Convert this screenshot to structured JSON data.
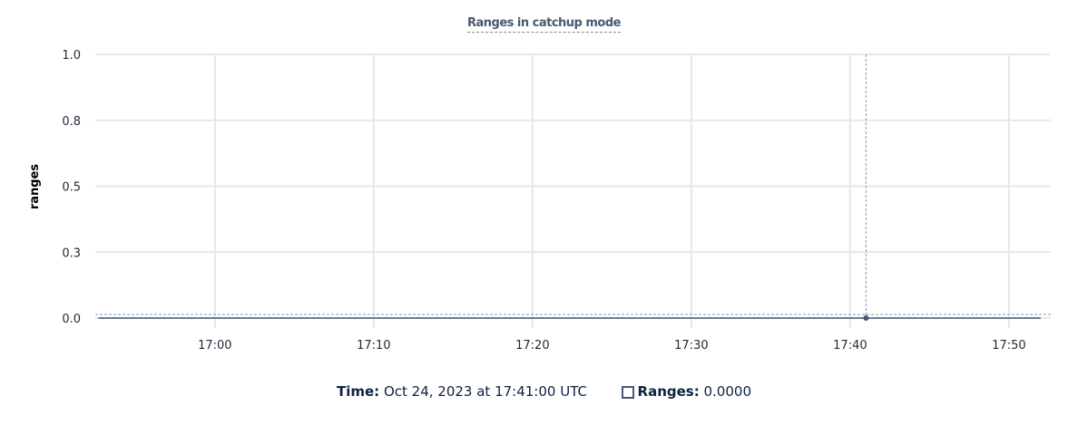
{
  "chart_data": {
    "type": "line",
    "title": "Ranges in catchup mode",
    "xlabel": "",
    "ylabel": "ranges",
    "xlim": [
      "16:52:28",
      "17:52:38"
    ],
    "ylim": [
      0,
      1
    ],
    "x_ticks": [
      "17:00",
      "17:10",
      "17:20",
      "17:30",
      "17:40",
      "17:50"
    ],
    "y_ticks": [
      {
        "value": 0,
        "label": "0.0"
      },
      {
        "value": 0.25,
        "label": "0.3"
      },
      {
        "value": 0.5,
        "label": "0.5"
      },
      {
        "value": 0.75,
        "label": "0.8"
      },
      {
        "value": 1,
        "label": "1.0"
      }
    ],
    "grid": true,
    "series": [
      {
        "name": "Ranges",
        "color": "#475872",
        "x": [
          "16:52:40",
          "17:00",
          "17:10",
          "17:20",
          "17:30",
          "17:40",
          "17:41",
          "17:50",
          "17:52"
        ],
        "y": [
          0,
          0,
          0,
          0,
          0,
          0,
          0,
          0,
          0
        ]
      }
    ],
    "hover": {
      "x": "17:41",
      "y": 0
    }
  },
  "legend": {
    "time_label": "Time:",
    "time_value": "Oct 24, 2023 at 17:41:00 UTC",
    "series_label": "Ranges:",
    "series_value": "0.0000"
  }
}
